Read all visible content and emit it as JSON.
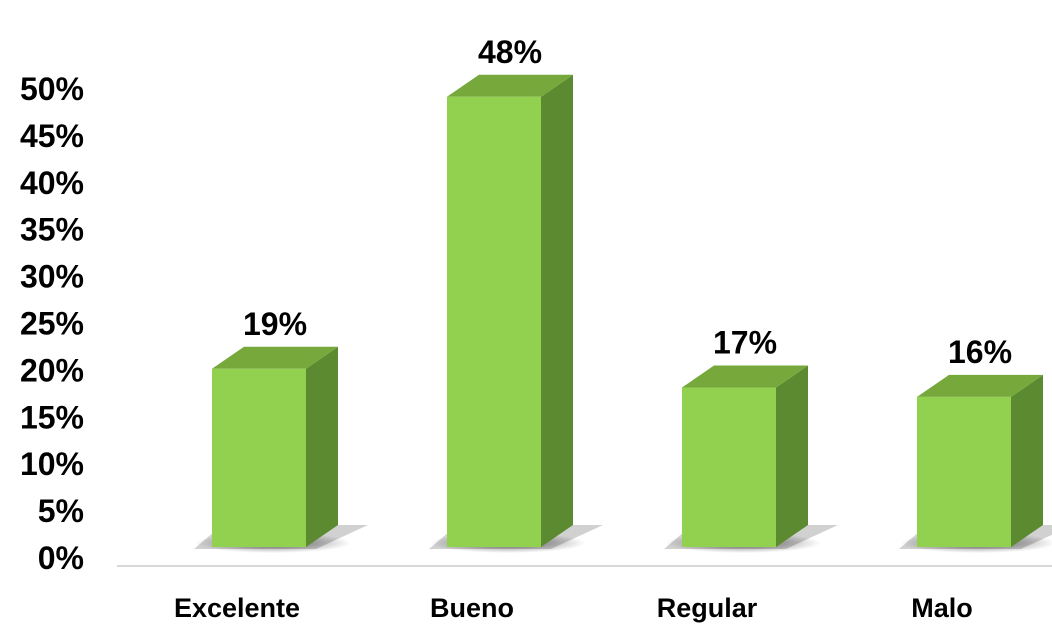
{
  "chart_data": {
    "type": "bar",
    "style": "3d-column",
    "categories": [
      "Excelente",
      "Bueno",
      "Regular",
      "Malo"
    ],
    "values": [
      19,
      48,
      17,
      16
    ],
    "data_labels": [
      "19%",
      "48%",
      "17%",
      "16%"
    ],
    "ylim": [
      0,
      50
    ],
    "y_ticks": [
      0,
      5,
      10,
      15,
      20,
      25,
      30,
      35,
      40,
      45,
      50
    ],
    "y_tick_labels": [
      "0%",
      "5%",
      "10%",
      "15%",
      "20%",
      "25%",
      "30%",
      "35%",
      "40%",
      "45%",
      "50%"
    ],
    "grid": false,
    "legend": "none",
    "title": "",
    "xlabel": "",
    "ylabel": ""
  },
  "colors": {
    "bar_front": "#92d050",
    "bar_top": "#76a83c",
    "bar_side": "#5b8a30",
    "axis_line": "#d9d9d9",
    "shadow": "#000000"
  }
}
